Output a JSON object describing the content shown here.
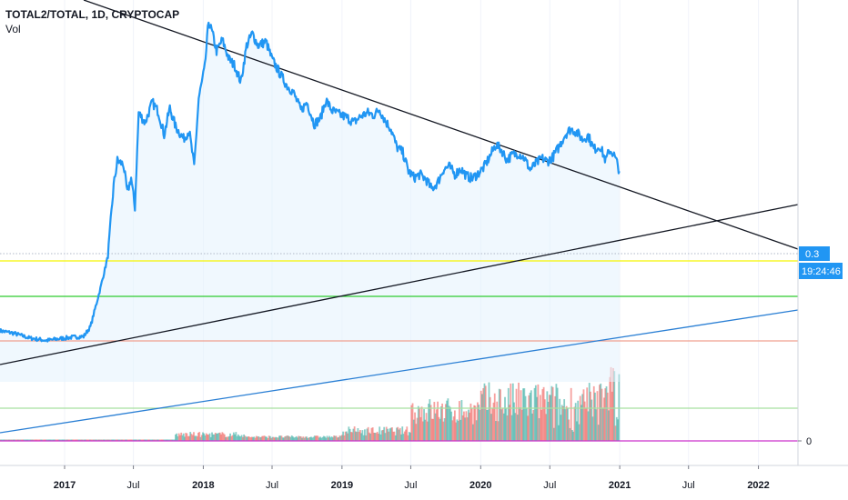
{
  "header": {
    "title": "TOTAL2/TOTAL, 1D, CRYPTOCAP",
    "indicator": "Vol"
  },
  "price_axis": {
    "current_value": "0.3",
    "countdown": "19:24:46",
    "volume_zero_label": "0"
  },
  "colors": {
    "price_line": "#2196f3",
    "area_fill": "#e3f2fd",
    "trendline": "#131722",
    "blue_trendline": "#2a7fd4",
    "yellow_level": "#f5f500",
    "green_level": "#2ecc2e",
    "red_level": "#f0a090",
    "light_green_level": "#a8e0a0",
    "magenta_level": "#cc33cc",
    "volume_up": "#26a69a",
    "volume_down": "#ef5350"
  },
  "chart_data": {
    "type": "line",
    "x_tick_labels": [
      "2017",
      "Jul",
      "2018",
      "Jul",
      "2019",
      "Jul",
      "2020",
      "Jul",
      "2021",
      "Jul",
      "2022"
    ],
    "x_tick_positions": [
      "2017-01-01",
      "2017-07-01",
      "2018-01-01",
      "2018-07-01",
      "2019-01-01",
      "2019-07-01",
      "2020-01-01",
      "2020-07-01",
      "2021-01-01",
      "2021-07-01",
      "2022-01-01"
    ],
    "xlim": [
      "2016-07-15",
      "2022-04-15"
    ],
    "ylim": [
      0.04,
      0.5
    ],
    "last_value": 0.3,
    "series": [
      {
        "values": [
          [
            "2016-07-15",
            0.103
          ],
          [
            "2016-08-20",
            0.1
          ],
          [
            "2016-10-01",
            0.094
          ],
          [
            "2016-11-15",
            0.091
          ],
          [
            "2016-12-15",
            0.093
          ],
          [
            "2017-01-20",
            0.095
          ],
          [
            "2017-02-20",
            0.096
          ],
          [
            "2017-03-10",
            0.108
          ],
          [
            "2017-04-05",
            0.155
          ],
          [
            "2017-04-25",
            0.195
          ],
          [
            "2017-05-10",
            0.282
          ],
          [
            "2017-05-20",
            0.313
          ],
          [
            "2017-06-05",
            0.308
          ],
          [
            "2017-06-15",
            0.273
          ],
          [
            "2017-06-25",
            0.292
          ],
          [
            "2017-07-05",
            0.255
          ],
          [
            "2017-07-15",
            0.372
          ],
          [
            "2017-08-01",
            0.36
          ],
          [
            "2017-08-20",
            0.385
          ],
          [
            "2017-09-05",
            0.373
          ],
          [
            "2017-09-20",
            0.345
          ],
          [
            "2017-10-05",
            0.378
          ],
          [
            "2017-10-20",
            0.355
          ],
          [
            "2017-11-10",
            0.34
          ],
          [
            "2017-11-25",
            0.35
          ],
          [
            "2017-12-08",
            0.305
          ],
          [
            "2017-12-20",
            0.39
          ],
          [
            "2018-01-05",
            0.428
          ],
          [
            "2018-01-15",
            0.485
          ],
          [
            "2018-01-25",
            0.47
          ],
          [
            "2018-02-05",
            0.448
          ],
          [
            "2018-02-20",
            0.462
          ],
          [
            "2018-03-10",
            0.438
          ],
          [
            "2018-03-25",
            0.43
          ],
          [
            "2018-04-10",
            0.41
          ],
          [
            "2018-04-25",
            0.455
          ],
          [
            "2018-05-10",
            0.47
          ],
          [
            "2018-05-25",
            0.455
          ],
          [
            "2018-06-15",
            0.46
          ],
          [
            "2018-07-01",
            0.438
          ],
          [
            "2018-07-20",
            0.422
          ],
          [
            "2018-08-10",
            0.405
          ],
          [
            "2018-08-25",
            0.398
          ],
          [
            "2018-09-15",
            0.375
          ],
          [
            "2018-10-01",
            0.385
          ],
          [
            "2018-10-20",
            0.358
          ],
          [
            "2018-11-05",
            0.365
          ],
          [
            "2018-11-20",
            0.388
          ],
          [
            "2018-12-05",
            0.375
          ],
          [
            "2018-12-25",
            0.37
          ],
          [
            "2019-01-15",
            0.366
          ],
          [
            "2019-02-01",
            0.36
          ],
          [
            "2019-02-20",
            0.368
          ],
          [
            "2019-03-10",
            0.372
          ],
          [
            "2019-03-25",
            0.369
          ],
          [
            "2019-04-10",
            0.376
          ],
          [
            "2019-04-25",
            0.362
          ],
          [
            "2019-05-10",
            0.352
          ],
          [
            "2019-05-25",
            0.33
          ],
          [
            "2019-06-10",
            0.323
          ],
          [
            "2019-06-25",
            0.3
          ],
          [
            "2019-07-10",
            0.292
          ],
          [
            "2019-07-25",
            0.296
          ],
          [
            "2019-08-10",
            0.29
          ],
          [
            "2019-08-25",
            0.278
          ],
          [
            "2019-09-10",
            0.286
          ],
          [
            "2019-09-25",
            0.302
          ],
          [
            "2019-10-10",
            0.306
          ],
          [
            "2019-10-25",
            0.296
          ],
          [
            "2019-11-10",
            0.303
          ],
          [
            "2019-11-25",
            0.294
          ],
          [
            "2019-12-10",
            0.291
          ],
          [
            "2019-12-25",
            0.297
          ],
          [
            "2020-01-10",
            0.305
          ],
          [
            "2020-01-25",
            0.318
          ],
          [
            "2020-02-10",
            0.333
          ],
          [
            "2020-02-25",
            0.326
          ],
          [
            "2020-03-10",
            0.314
          ],
          [
            "2020-03-25",
            0.32
          ],
          [
            "2020-04-10",
            0.322
          ],
          [
            "2020-04-25",
            0.316
          ],
          [
            "2020-05-10",
            0.302
          ],
          [
            "2020-05-25",
            0.309
          ],
          [
            "2020-06-10",
            0.316
          ],
          [
            "2020-06-25",
            0.312
          ],
          [
            "2020-07-10",
            0.318
          ],
          [
            "2020-07-25",
            0.33
          ],
          [
            "2020-08-10",
            0.345
          ],
          [
            "2020-08-25",
            0.352
          ],
          [
            "2020-09-10",
            0.348
          ],
          [
            "2020-09-25",
            0.339
          ],
          [
            "2020-10-10",
            0.344
          ],
          [
            "2020-10-25",
            0.327
          ],
          [
            "2020-11-10",
            0.331
          ],
          [
            "2020-11-25",
            0.313
          ],
          [
            "2020-12-05",
            0.326
          ],
          [
            "2020-12-15",
            0.322
          ],
          [
            "2020-12-25",
            0.31
          ],
          [
            "2020-12-31",
            0.3
          ]
        ]
      }
    ],
    "volume": {
      "label": "Vol",
      "zero_label": "0"
    }
  }
}
